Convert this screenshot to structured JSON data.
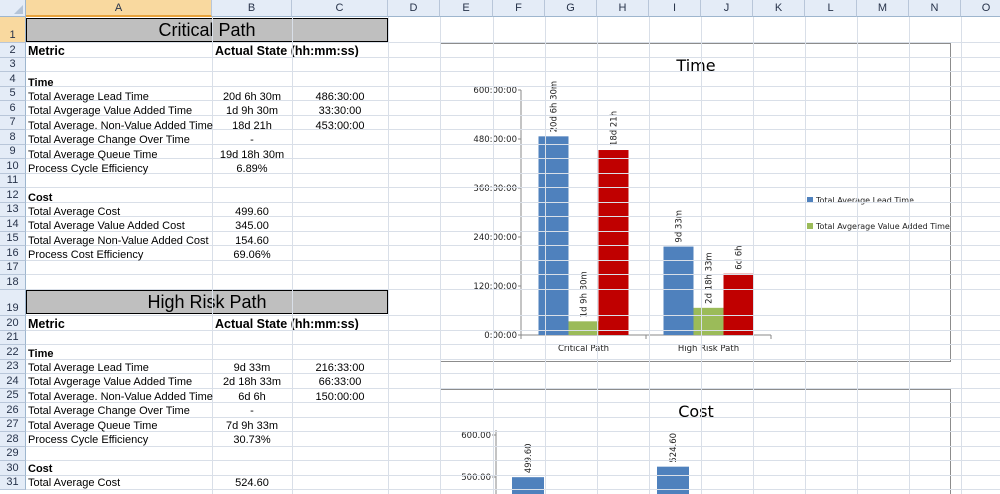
{
  "sheet": {
    "columns": [
      "A",
      "B",
      "C",
      "D",
      "E",
      "F",
      "G",
      "H",
      "I",
      "J",
      "K",
      "L",
      "M",
      "N",
      "O"
    ],
    "rows": [
      "1",
      "2",
      "3",
      "4",
      "5",
      "6",
      "7",
      "8",
      "9",
      "10",
      "11",
      "12",
      "13",
      "14",
      "15",
      "16",
      "17",
      "18",
      "19",
      "20",
      "21",
      "22",
      "23",
      "24",
      "25",
      "26",
      "27",
      "28",
      "29",
      "30",
      "31"
    ],
    "selected_cell": "A1"
  },
  "critical": {
    "banner": "Critical Path",
    "metric_header": "Metric",
    "state_header": "Actual State (hh:mm:ss)",
    "time_section": "Time",
    "time_rows": [
      {
        "label": "Total Average Lead Time",
        "b": "20d 6h 30m",
        "c": "486:30:00"
      },
      {
        "label": "Total Avgerage Value Added Time",
        "b": "1d 9h 30m",
        "c": "33:30:00"
      },
      {
        "label": "Total Average. Non-Value Added Time",
        "b": "18d 21h",
        "c": "453:00:00"
      },
      {
        "label": "Total Average Change Over Time",
        "b": "-",
        "c": ""
      },
      {
        "label": "Total Average Queue Time",
        "b": "19d 18h 30m",
        "c": ""
      },
      {
        "label": "Process Cycle Efficiency",
        "b": "6.89%",
        "c": ""
      }
    ],
    "cost_section": "Cost",
    "cost_rows": [
      {
        "label": "Total Average Cost",
        "b": "499.60"
      },
      {
        "label": "Total Average Value Added Cost",
        "b": "345.00"
      },
      {
        "label": "Total Average Non-Value Added Cost",
        "b": "154.60"
      },
      {
        "label": "Process Cost Efficiency",
        "b": "69.06%"
      }
    ]
  },
  "highrisk": {
    "banner": "High Risk Path",
    "metric_header": "Metric",
    "state_header": "Actual State (hh:mm:ss)",
    "time_section": "Time",
    "time_rows": [
      {
        "label": "Total Average Lead Time",
        "b": "9d 33m",
        "c": "216:33:00"
      },
      {
        "label": "Total Avgerage Value Added Time",
        "b": "2d 18h 33m",
        "c": "66:33:00"
      },
      {
        "label": "Total Average. Non-Value Added Time",
        "b": "6d 6h",
        "c": "150:00:00"
      },
      {
        "label": "Total Average Change Over Time",
        "b": "-",
        "c": ""
      },
      {
        "label": "Total Average Queue Time",
        "b": "7d 9h 33m",
        "c": ""
      },
      {
        "label": "Process Cycle Efficiency",
        "b": "30.73%",
        "c": ""
      }
    ],
    "cost_section": "Cost",
    "cost_rows": [
      {
        "label": "Total Average Cost",
        "b": "524.60"
      }
    ]
  },
  "chart_data": [
    {
      "type": "bar",
      "title": "Time",
      "categories": [
        "Critical Path",
        "High Risk Path"
      ],
      "y_ticks": [
        "0:00:00",
        "120:00:00",
        "240:00:00",
        "360:00:00",
        "480:00:00",
        "600:00:00"
      ],
      "ylim_hours": [
        0,
        600
      ],
      "series": [
        {
          "name": "Total Average Lead Time",
          "color": "#4f81bd",
          "values_hours": [
            486.5,
            216.55
          ],
          "data_labels": [
            "20d 6h 30m",
            "9d 33m"
          ]
        },
        {
          "name": "Total Avgerage Value Added Time",
          "color": "#9bbb59",
          "values_hours": [
            33.5,
            66.55
          ],
          "data_labels": [
            "1d 9h 30m",
            "2d 18h 33m"
          ]
        },
        {
          "name": "",
          "color": "#c00000",
          "values_hours": [
            453,
            150
          ],
          "data_labels": [
            "18d 21h",
            "6d 6h"
          ]
        }
      ],
      "legend": "right"
    },
    {
      "type": "bar",
      "title": "Cost",
      "y_ticks": [
        "500.00",
        "600.00"
      ],
      "series": [
        {
          "color": "#4f81bd",
          "values": [
            499.6,
            524.6
          ],
          "data_labels": [
            "499.60",
            "524.60"
          ]
        }
      ]
    }
  ]
}
